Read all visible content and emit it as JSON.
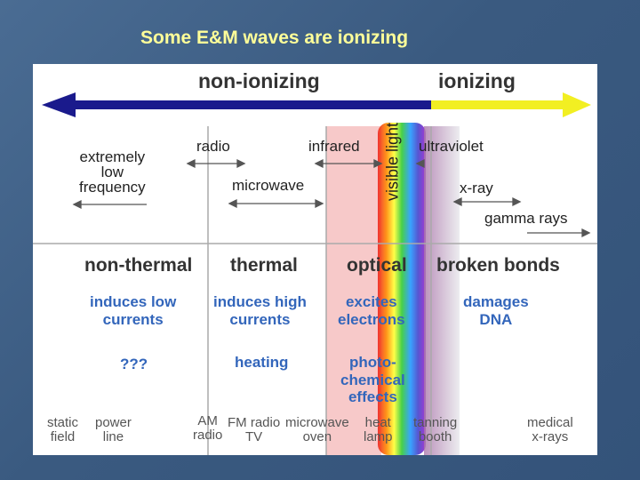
{
  "slide": {
    "title": "Some E&M waves are ionizing"
  },
  "colors": {
    "title": "#ffff99",
    "non_ionizing_arrow": "#1a1a8c",
    "ionizing_arrow": "#f2ef22",
    "effect_text": "#3366bb"
  },
  "spectrum": {
    "non_ionizing": "non-ionizing",
    "ionizing": "ionizing"
  },
  "bands": {
    "elf_line1": "extremely",
    "elf_line2": "low",
    "elf_line3": "frequency",
    "radio": "radio",
    "microwave": "microwave",
    "infrared": "infrared",
    "visible": "visible light",
    "ultraviolet": "ultraviolet",
    "xray": "x-ray",
    "gamma": "gamma rays"
  },
  "effects": {
    "non_thermal": "non-thermal",
    "thermal": "thermal",
    "optical": "optical",
    "broken_bonds": "broken bonds",
    "low_currents_1": "induces low",
    "low_currents_2": "currents",
    "high_currents_1": "induces high",
    "high_currents_2": "currents",
    "excites_1": "excites",
    "excites_2": "electrons",
    "dna_1": "damages",
    "dna_2": "DNA",
    "unknown": "???",
    "heating": "heating",
    "photo_1": "photo-",
    "photo_2": "chemical",
    "photo_3": "effects"
  },
  "examples": {
    "static_1": "static",
    "static_2": "field",
    "power_1": "power",
    "power_2": "line",
    "am_1": "AM",
    "am_2": "radio",
    "fm_1": "FM radio",
    "fm_2": "TV",
    "mw_1": "microwave",
    "mw_2": "oven",
    "heat_1": "heat",
    "heat_2": "lamp",
    "tan_1": "tanning",
    "tan_2": "booth",
    "med_1": "medical",
    "med_2": "x-rays"
  }
}
